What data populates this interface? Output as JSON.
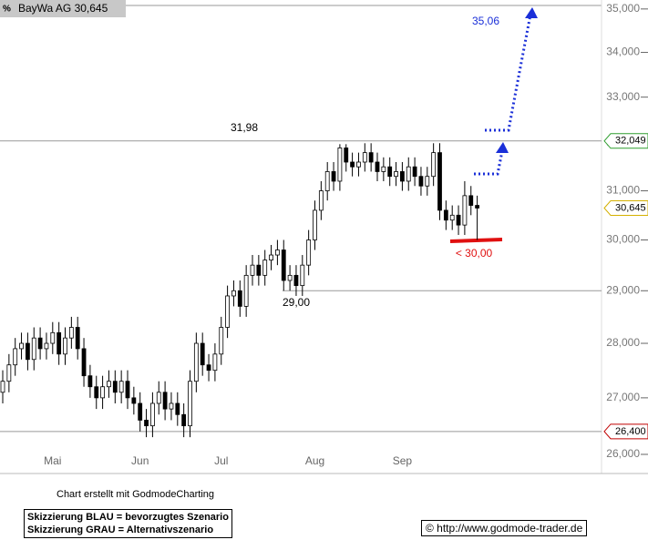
{
  "chart_data": {
    "type": "candlestick",
    "title": "BayWa AG 30,645",
    "log_scale": true,
    "categories": [
      null,
      null,
      null,
      null,
      null,
      null,
      null,
      null,
      "Mai",
      null,
      null,
      null,
      null,
      null,
      null,
      null,
      null,
      null,
      null,
      null,
      null,
      null,
      "Jun",
      null,
      null,
      null,
      null,
      null,
      null,
      null,
      null,
      null,
      null,
      null,
      null,
      "Jul",
      null,
      null,
      null,
      null,
      null,
      null,
      null,
      null,
      null,
      null,
      null,
      null,
      null,
      null,
      "Aug",
      null,
      null,
      null,
      null,
      null,
      null,
      null,
      null,
      null,
      null,
      null,
      null,
      null,
      "Sep",
      null,
      null,
      null,
      null,
      null,
      null,
      null,
      null,
      null,
      null,
      null,
      null
    ],
    "open": [
      27.1,
      27.3,
      27.6,
      27.9,
      28.0,
      27.7,
      28.1,
      27.9,
      28.0,
      28.2,
      27.8,
      28.1,
      28.3,
      27.9,
      27.4,
      27.2,
      27.0,
      27.2,
      27.3,
      27.1,
      27.3,
      27.0,
      26.9,
      26.6,
      26.5,
      26.9,
      27.1,
      26.8,
      26.9,
      26.7,
      26.5,
      27.3,
      28.0,
      27.6,
      27.5,
      27.8,
      28.3,
      28.9,
      29.0,
      28.7,
      29.3,
      29.5,
      29.3,
      29.6,
      29.7,
      29.8,
      29.2,
      29.3,
      29.1,
      29.5,
      30.0,
      30.6,
      31.0,
      31.4,
      31.2,
      31.9,
      31.6,
      31.5,
      31.6,
      31.8,
      31.6,
      31.4,
      31.5,
      31.3,
      31.4,
      31.2,
      31.5,
      31.3,
      31.1,
      31.3,
      31.8,
      30.6,
      30.4,
      30.5,
      30.3,
      30.9,
      30.7
    ],
    "high": [
      27.5,
      27.8,
      28.1,
      28.2,
      28.2,
      28.3,
      28.3,
      28.2,
      28.4,
      28.4,
      28.3,
      28.5,
      28.5,
      28.1,
      27.6,
      27.4,
      27.4,
      27.5,
      27.5,
      27.5,
      27.5,
      27.2,
      27.1,
      26.8,
      27.1,
      27.3,
      27.3,
      27.1,
      27.1,
      26.9,
      27.5,
      28.2,
      28.2,
      27.8,
      28.0,
      28.5,
      29.1,
      29.2,
      29.2,
      29.5,
      29.7,
      29.7,
      29.8,
      29.9,
      30.0,
      30.0,
      29.5,
      29.5,
      29.7,
      30.2,
      30.8,
      31.2,
      31.6,
      31.6,
      31.98,
      31.98,
      31.8,
      31.8,
      32.0,
      32.0,
      31.8,
      31.7,
      31.7,
      31.6,
      31.6,
      31.7,
      31.7,
      31.5,
      31.5,
      32.0,
      32.0,
      30.8,
      30.7,
      30.7,
      31.2,
      31.1,
      30.9
    ],
    "low": [
      26.9,
      27.1,
      27.4,
      27.7,
      27.5,
      27.5,
      27.7,
      27.7,
      27.8,
      27.6,
      27.6,
      27.9,
      27.7,
      27.2,
      27.0,
      26.8,
      26.8,
      27.0,
      26.9,
      26.9,
      26.8,
      26.7,
      26.4,
      26.3,
      26.3,
      26.7,
      26.6,
      26.6,
      26.5,
      26.3,
      26.3,
      27.1,
      27.4,
      27.3,
      27.3,
      27.6,
      28.1,
      28.7,
      28.5,
      28.5,
      29.1,
      29.1,
      29.1,
      29.4,
      29.5,
      29.0,
      29.0,
      28.9,
      28.9,
      29.3,
      29.8,
      30.4,
      30.8,
      31.0,
      31.0,
      31.4,
      31.3,
      31.3,
      31.4,
      31.4,
      31.2,
      31.2,
      31.1,
      31.1,
      31.0,
      31.0,
      31.1,
      30.9,
      30.9,
      31.1,
      30.4,
      30.2,
      30.2,
      30.1,
      30.1,
      30.5,
      30.0
    ],
    "close": [
      27.3,
      27.6,
      27.9,
      28.0,
      27.7,
      28.1,
      27.9,
      28.0,
      28.2,
      27.8,
      28.1,
      28.3,
      27.9,
      27.4,
      27.2,
      27.0,
      27.2,
      27.3,
      27.1,
      27.3,
      27.0,
      26.9,
      26.6,
      26.5,
      26.9,
      27.1,
      26.8,
      26.9,
      26.7,
      26.5,
      27.3,
      28.0,
      27.6,
      27.5,
      27.8,
      28.3,
      28.9,
      29.0,
      28.7,
      29.3,
      29.5,
      29.3,
      29.6,
      29.7,
      29.8,
      29.2,
      29.3,
      29.1,
      29.5,
      30.0,
      30.6,
      31.0,
      31.4,
      31.2,
      31.9,
      31.6,
      31.5,
      31.6,
      31.8,
      31.6,
      31.4,
      31.5,
      31.3,
      31.4,
      31.2,
      31.5,
      31.3,
      31.1,
      31.3,
      31.8,
      30.6,
      30.4,
      30.5,
      30.3,
      30.9,
      30.7,
      30.645
    ],
    "ylim": [
      25.67,
      35.21
    ],
    "yticks": [
      {
        "value": 26,
        "label": "26,000"
      },
      {
        "value": 27,
        "label": "27,000"
      },
      {
        "value": 28,
        "label": "28,000"
      },
      {
        "value": 29,
        "label": "29,000"
      },
      {
        "value": 30,
        "label": "30,000"
      },
      {
        "value": 31,
        "label": "31,000"
      },
      {
        "value": 32,
        "label": "32,000"
      },
      {
        "value": 33,
        "label": "33,000"
      },
      {
        "value": 34,
        "label": "34,000"
      },
      {
        "value": 35,
        "label": "35,000"
      }
    ],
    "levels": [
      {
        "value": 32.049,
        "label": "32,049",
        "color": "#2e9e2e"
      },
      {
        "value": 30.645,
        "label": "30,645",
        "color": "#d4b000"
      },
      {
        "value": 26.4,
        "label": "26,400",
        "color": "#c00000"
      }
    ],
    "annotations": [
      "31,98",
      "29,00",
      "< 30,00",
      "35,06"
    ]
  },
  "footer": {
    "credit": "Chart erstellt mit GodmodeCharting",
    "legend": [
      "Skizzierung BLAU = bevorzugtes Szenario",
      "Skizzierung GRAU = Alternativszenario"
    ],
    "copyright": "© http://www.godmode-trader.de"
  }
}
